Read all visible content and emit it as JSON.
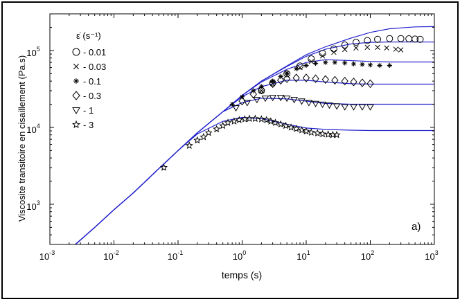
{
  "chart_data": {
    "type": "scatter",
    "title": "",
    "xlabel": "temps (s)",
    "ylabel": "Viscosite transitoire en cisaillement  (Pa.s)",
    "xscale": "log",
    "yscale": "log",
    "xlim": [
      0.001,
      1000
    ],
    "ylim": [
      300,
      300000
    ],
    "panel_label": "a)",
    "x_ticks": [
      {
        "value": 0.001,
        "base": "10",
        "exp": "-3"
      },
      {
        "value": 0.01,
        "base": "10",
        "exp": "-2"
      },
      {
        "value": 0.1,
        "base": "10",
        "exp": "-1"
      },
      {
        "value": 1,
        "base": "10",
        "exp": "0"
      },
      {
        "value": 10,
        "base": "10",
        "exp": "1"
      },
      {
        "value": 100,
        "base": "10",
        "exp": "2"
      },
      {
        "value": 1000,
        "base": "10",
        "exp": "3"
      }
    ],
    "y_ticks": [
      {
        "value": 1000,
        "base": "10",
        "exp": "3"
      },
      {
        "value": 10000,
        "base": "10",
        "exp": "4"
      },
      {
        "value": 100000,
        "base": "10",
        "exp": "5"
      }
    ],
    "legend": {
      "title": "ε̇ (s⁻¹)",
      "placement": "top-left",
      "entries": [
        {
          "marker": "circle",
          "label": "- 0.01"
        },
        {
          "marker": "x",
          "label": "- 0.03"
        },
        {
          "marker": "asterisk",
          "label": "- 0.1"
        },
        {
          "marker": "diamond",
          "label": "- 0.3"
        },
        {
          "marker": "triangle-down",
          "label": "- 1"
        },
        {
          "marker": "star",
          "label": "- 3"
        }
      ]
    },
    "series": [
      {
        "name": "- 0.01",
        "marker": "circle",
        "x": [
          2,
          3,
          5,
          8,
          12,
          18,
          27,
          40,
          60,
          90,
          130,
          200,
          300,
          400,
          500,
          600
        ],
        "y": [
          30000,
          38000,
          50000,
          63000,
          78000,
          92000,
          105000,
          118000,
          128000,
          135000,
          140000,
          143000,
          143000,
          142000,
          141000,
          140000
        ]
      },
      {
        "name": "- 0.03",
        "marker": "x",
        "x": [
          2,
          3,
          5,
          8,
          12,
          18,
          27,
          40,
          60,
          90,
          130,
          180,
          250,
          300
        ],
        "y": [
          30000,
          37000,
          48000,
          60000,
          72000,
          85000,
          95000,
          103000,
          108000,
          110000,
          110000,
          108000,
          104000,
          102000
        ]
      },
      {
        "name": "- 0.1",
        "marker": "asterisk",
        "x": [
          0.7,
          1,
          1.5,
          2,
          3,
          4,
          5,
          7,
          10,
          14,
          20,
          28,
          40,
          55,
          75,
          100,
          140,
          200
        ],
        "y": [
          20000,
          25000,
          30000,
          34000,
          40000,
          46000,
          51000,
          58000,
          64000,
          68000,
          70000,
          70000,
          69000,
          67000,
          66000,
          65000,
          64000,
          64000
        ]
      },
      {
        "name": "- 0.3",
        "marker": "diamond",
        "x": [
          1,
          1.5,
          2,
          3,
          4,
          5,
          7,
          10,
          14,
          20,
          28,
          40,
          55,
          75,
          100
        ],
        "y": [
          22000,
          27000,
          31000,
          37000,
          41000,
          43000,
          44000,
          44000,
          43000,
          42000,
          41000,
          40000,
          39000,
          38000,
          37000
        ]
      },
      {
        "name": "- 1",
        "marker": "triangle-down",
        "x": [
          0.8,
          1.2,
          1.7,
          2.3,
          3,
          4,
          5,
          6.5,
          8.5,
          11,
          14,
          18,
          23,
          30,
          40,
          55,
          75,
          100
        ],
        "y": [
          18000,
          21000,
          23000,
          24000,
          24500,
          24500,
          24000,
          23000,
          22000,
          21000,
          20500,
          20000,
          19500,
          19000,
          18500,
          18500,
          18500,
          18500
        ]
      },
      {
        "name": "- 3",
        "marker": "star",
        "x": [
          0.06,
          0.15,
          0.2,
          0.25,
          0.3,
          0.4,
          0.5,
          0.6,
          0.75,
          0.9,
          1.1,
          1.3,
          1.6,
          2,
          2.4,
          2.8,
          3.3,
          4,
          4.8,
          5.8,
          7,
          8.5,
          10,
          12,
          15,
          18,
          22,
          26,
          30
        ],
        "y": [
          3000,
          5800,
          6800,
          7500,
          8500,
          9500,
          10500,
          11500,
          12000,
          12500,
          12800,
          13000,
          13000,
          12800,
          12500,
          12000,
          11500,
          11000,
          10500,
          10000,
          9600,
          9200,
          8900,
          8600,
          8400,
          8200,
          8100,
          8000,
          8000
        ]
      }
    ],
    "model_curves": [
      {
        "x": [
          0.0025,
          0.005,
          0.01,
          0.02,
          0.05,
          0.1,
          0.2,
          0.5,
          1,
          2,
          5,
          10,
          20,
          50,
          100,
          200,
          500,
          1000
        ],
        "y": [
          300,
          500,
          850,
          1400,
          2900,
          5000,
          8500,
          16000,
          26000,
          40000,
          63000,
          88000,
          112000,
          145000,
          172000,
          192000,
          203000,
          205000
        ]
      },
      {
        "x": [
          0.0025,
          0.005,
          0.01,
          0.02,
          0.05,
          0.1,
          0.2,
          0.5,
          1,
          2,
          5,
          10,
          20,
          50,
          100,
          200,
          500,
          1000
        ],
        "y": [
          300,
          500,
          850,
          1400,
          2900,
          5000,
          8500,
          16000,
          26000,
          40000,
          62000,
          84000,
          104000,
          122000,
          128000,
          129000,
          129000,
          129000
        ]
      },
      {
        "x": [
          0.0025,
          0.005,
          0.01,
          0.02,
          0.05,
          0.1,
          0.2,
          0.5,
          1,
          2,
          5,
          10,
          20,
          50,
          100,
          200,
          500,
          1000
        ],
        "y": [
          300,
          500,
          850,
          1400,
          2900,
          5000,
          8500,
          16000,
          26000,
          39000,
          57000,
          70000,
          76000,
          74000,
          72000,
          71000,
          71000,
          71000
        ]
      },
      {
        "x": [
          0.0025,
          0.005,
          0.01,
          0.02,
          0.05,
          0.1,
          0.2,
          0.5,
          1,
          2,
          5,
          10,
          20,
          50,
          100,
          200,
          500,
          1000
        ],
        "y": [
          300,
          500,
          850,
          1400,
          2900,
          5000,
          8500,
          16000,
          25000,
          34000,
          41000,
          41000,
          39000,
          37000,
          36500,
          36500,
          36500,
          36500
        ]
      },
      {
        "x": [
          0.0025,
          0.005,
          0.01,
          0.02,
          0.05,
          0.1,
          0.2,
          0.5,
          1,
          2,
          5,
          10,
          20,
          50,
          100,
          200,
          500,
          1000
        ],
        "y": [
          300,
          500,
          850,
          1400,
          2900,
          5000,
          8500,
          16000,
          21000,
          24000,
          23500,
          22000,
          20500,
          20000,
          20000,
          20000,
          20000,
          20000
        ]
      },
      {
        "x": [
          0.0025,
          0.005,
          0.01,
          0.02,
          0.05,
          0.1,
          0.2,
          0.5,
          1,
          2,
          5,
          10,
          20,
          50,
          100,
          200,
          500,
          1000
        ],
        "y": [
          300,
          500,
          850,
          1400,
          2900,
          5000,
          8200,
          12000,
          13500,
          13000,
          11000,
          9800,
          9400,
          9200,
          9100,
          9100,
          9100,
          9100
        ]
      }
    ],
    "colors": {
      "curves": "#2222cc",
      "markers": "#000000",
      "axes": "#000000",
      "background": "#ffffff"
    }
  }
}
